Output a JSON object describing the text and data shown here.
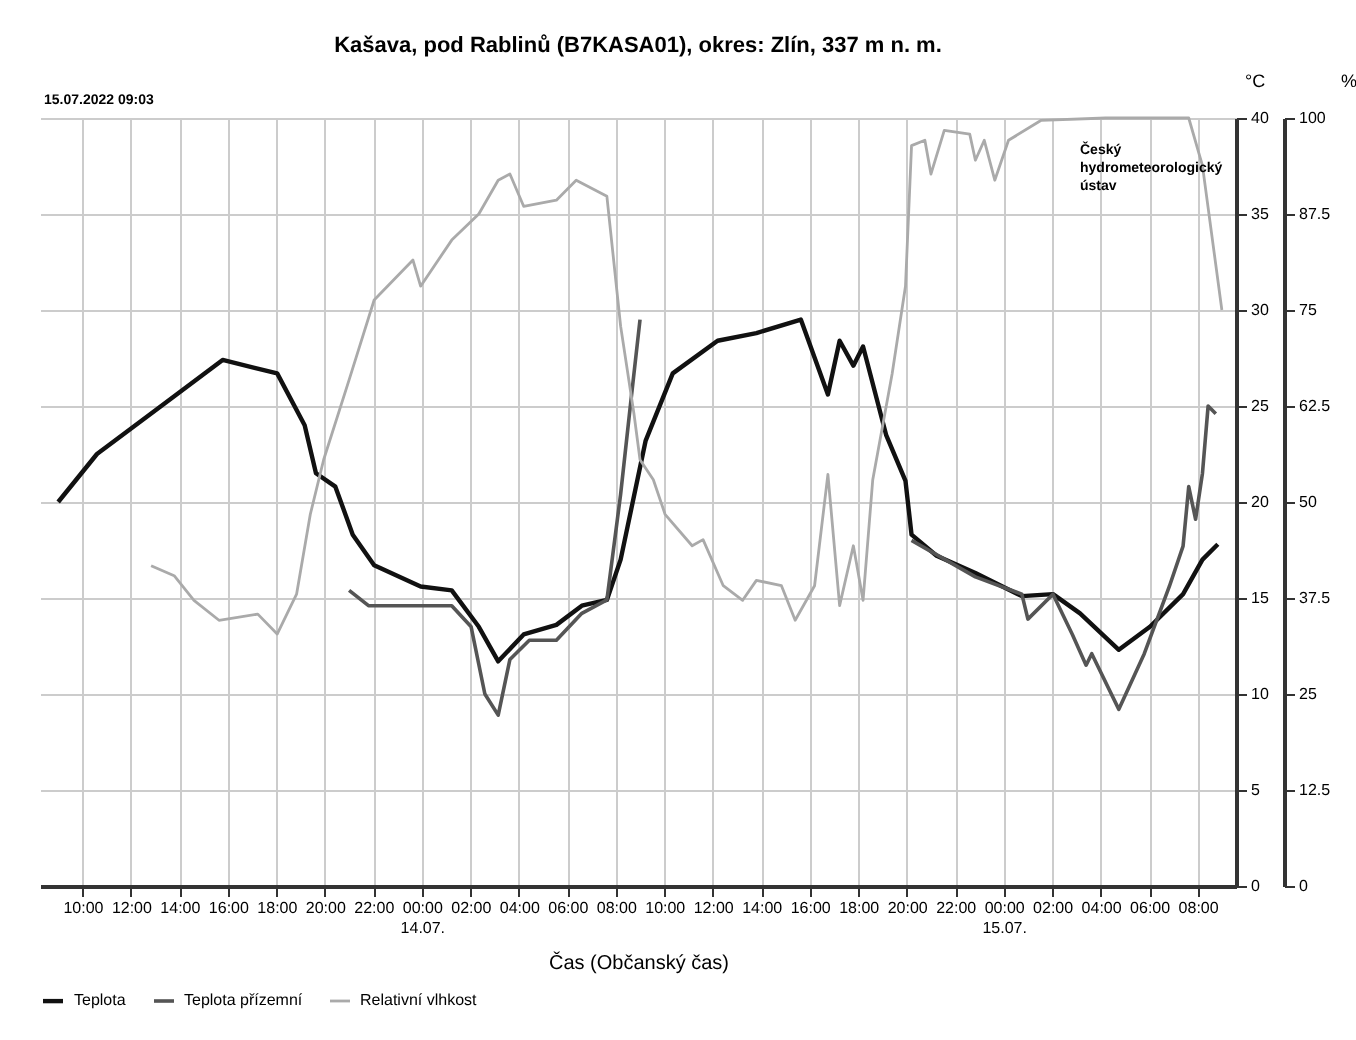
{
  "chart_data": {
    "type": "line",
    "title": "Kašava, pod Rablinů (B7KASA01), okres: Zlín, 337 m n. m.",
    "xlabel": "Čas (Občanský čas)",
    "ylabel": "°C",
    "y2label": "%",
    "annotations": [
      "15.07.2022 09:03",
      "Český hydrometeorologický ústav"
    ],
    "xlim": [
      "2022-07-13T08:15",
      "2022-07-15T09:35"
    ],
    "xticks": [
      {
        "value": "2022-07-13T10:00",
        "label": "10:00"
      },
      {
        "value": "2022-07-13T12:00",
        "label": "12:00"
      },
      {
        "value": "2022-07-13T14:00",
        "label": "14:00"
      },
      {
        "value": "2022-07-13T16:00",
        "label": "16:00"
      },
      {
        "value": "2022-07-13T18:00",
        "label": "18:00"
      },
      {
        "value": "2022-07-13T20:00",
        "label": "20:00"
      },
      {
        "value": "2022-07-13T22:00",
        "label": "22:00"
      },
      {
        "value": "2022-07-14T00:00",
        "label": "00:00\n14.07."
      },
      {
        "value": "2022-07-14T02:00",
        "label": "02:00"
      },
      {
        "value": "2022-07-14T04:00",
        "label": "04:00"
      },
      {
        "value": "2022-07-14T06:00",
        "label": "06:00"
      },
      {
        "value": "2022-07-14T08:00",
        "label": "08:00"
      },
      {
        "value": "2022-07-14T10:00",
        "label": "10:00"
      },
      {
        "value": "2022-07-14T12:00",
        "label": "12:00"
      },
      {
        "value": "2022-07-14T14:00",
        "label": "14:00"
      },
      {
        "value": "2022-07-14T16:00",
        "label": "16:00"
      },
      {
        "value": "2022-07-14T18:00",
        "label": "18:00"
      },
      {
        "value": "2022-07-14T20:00",
        "label": "20:00"
      },
      {
        "value": "2022-07-14T22:00",
        "label": "22:00"
      },
      {
        "value": "2022-07-15T00:00",
        "label": "00:00\n15.07."
      },
      {
        "value": "2022-07-15T02:00",
        "label": "02:00"
      },
      {
        "value": "2022-07-15T04:00",
        "label": "04:00"
      },
      {
        "value": "2022-07-15T06:00",
        "label": "06:00"
      },
      {
        "value": "2022-07-15T08:00",
        "label": "08:00"
      }
    ],
    "ylim": [
      0,
      40
    ],
    "yticks": [
      0,
      5,
      10,
      15,
      20,
      25,
      30,
      35,
      40
    ],
    "y2lim": [
      0,
      100
    ],
    "y2ticks": [
      0,
      12.5,
      25,
      37.5,
      50,
      62.5,
      75,
      87.5,
      100
    ],
    "grid": true,
    "legend": "bottom",
    "line_style": "solid",
    "series": [
      {
        "name": "Teplota",
        "color": "#111111",
        "x": [
          "2022-07-13T09:00",
          "2022-07-13T10:36",
          "2022-07-13T13:15",
          "2022-07-13T15:47",
          "2022-07-13T18:02",
          "2022-07-13T19:10",
          "2022-07-13T19:38",
          "2022-07-13T20:26",
          "2022-07-13T21:09",
          "2022-07-13T22:02",
          "2022-07-13T23:57",
          "2022-07-14T01:14",
          "2022-07-14T02:21",
          "2022-07-14T03:09",
          "2022-07-14T04:12",
          "2022-07-14T05:33",
          "2022-07-14T06:36",
          "2022-07-14T07:38",
          "2022-07-14T08:12",
          "2022-07-14T09:14",
          "2022-07-14T10:21",
          "2022-07-14T12:12",
          "2022-07-14T13:48",
          "2022-07-14T15:38",
          "2022-07-14T16:45",
          "2022-07-14T17:14",
          "2022-07-14T17:48",
          "2022-07-14T18:12",
          "2022-07-14T19:09",
          "2022-07-14T19:57",
          "2022-07-14T20:12",
          "2022-07-14T21:14",
          "2022-07-14T22:50",
          "2022-07-15T00:45",
          "2022-07-15T02:02",
          "2022-07-15T03:09",
          "2022-07-15T04:45",
          "2022-07-15T06:02",
          "2022-07-15T07:24",
          "2022-07-15T08:12",
          "2022-07-15T08:50"
        ],
        "values": [
          20.0,
          22.5,
          25.0,
          27.4,
          26.7,
          24.0,
          21.5,
          20.8,
          18.3,
          16.7,
          15.6,
          15.4,
          13.5,
          11.7,
          13.1,
          13.6,
          14.6,
          14.9,
          17.0,
          23.2,
          26.7,
          28.4,
          28.8,
          29.5,
          25.6,
          28.4,
          27.1,
          28.1,
          23.5,
          21.1,
          18.3,
          17.2,
          16.3,
          15.1,
          15.2,
          14.2,
          12.3,
          13.5,
          15.2,
          17.0,
          17.8
        ]
      },
      {
        "name": "Teplota přízemní",
        "color": "#555555",
        "x": [
          "2022-07-13T21:00",
          "2022-07-13T21:48",
          "2022-07-13T23:38",
          "2022-07-14T01:14",
          "2022-07-14T02:02",
          "2022-07-14T02:36",
          "2022-07-14T03:09",
          "2022-07-14T03:38",
          "2022-07-14T04:26",
          "2022-07-14T05:33",
          "2022-07-14T06:36",
          "2022-07-14T07:38",
          "2022-07-14T08:12",
          "2022-07-14T08:36",
          "2022-07-14T09:00",
          "2022-07-14T14:00",
          "2022-07-14T20:12",
          "2022-07-14T22:50",
          "2022-07-15T00:45",
          "2022-07-15T01:00",
          "2022-07-15T02:02",
          "2022-07-15T02:50",
          "2022-07-15T03:24",
          "2022-07-15T03:38",
          "2022-07-15T04:45",
          "2022-07-15T05:48",
          "2022-07-15T06:50",
          "2022-07-15T07:24",
          "2022-07-15T07:38",
          "2022-07-15T07:55",
          "2022-07-15T08:12",
          "2022-07-15T08:26",
          "2022-07-15T08:45"
        ],
        "values": [
          15.4,
          14.6,
          14.6,
          14.6,
          13.5,
          10.0,
          8.9,
          11.8,
          12.8,
          12.8,
          14.2,
          14.9,
          20.4,
          25.0,
          29.5,
          null,
          18.0,
          16.1,
          15.2,
          13.9,
          15.2,
          13.1,
          11.5,
          12.1,
          9.2,
          12.1,
          15.6,
          17.7,
          20.8,
          19.1,
          21.5,
          25.0,
          24.6
        ]
      },
      {
        "name": "Relativní vlhkost",
        "color": "#aaaaaa",
        "axis": "y2",
        "x": [
          "2022-07-13T12:50",
          "2022-07-13T13:47",
          "2022-07-13T14:36",
          "2022-07-13T15:38",
          "2022-07-13T17:14",
          "2022-07-13T18:02",
          "2022-07-13T18:50",
          "2022-07-13T19:24",
          "2022-07-13T19:57",
          "2022-07-13T21:00",
          "2022-07-13T22:02",
          "2022-07-13T23:38",
          "2022-07-13T23:57",
          "2022-07-14T01:14",
          "2022-07-14T02:21",
          "2022-07-14T03:09",
          "2022-07-14T03:38",
          "2022-07-14T04:12",
          "2022-07-14T05:33",
          "2022-07-14T06:22",
          "2022-07-14T07:38",
          "2022-07-14T08:12",
          "2022-07-14T08:45",
          "2022-07-14T09:00",
          "2022-07-14T09:33",
          "2022-07-14T10:02",
          "2022-07-14T11:09",
          "2022-07-14T11:36",
          "2022-07-14T12:26",
          "2022-07-14T13:14",
          "2022-07-14T13:48",
          "2022-07-14T14:50",
          "2022-07-14T15:24",
          "2022-07-14T16:12",
          "2022-07-14T16:45",
          "2022-07-14T17:14",
          "2022-07-14T17:48",
          "2022-07-14T18:12",
          "2022-07-14T18:36",
          "2022-07-14T19:24",
          "2022-07-14T19:57",
          "2022-07-14T20:12",
          "2022-07-14T20:45",
          "2022-07-14T21:00",
          "2022-07-14T21:33",
          "2022-07-14T22:36",
          "2022-07-14T22:50",
          "2022-07-14T23:12",
          "2022-07-14T23:38",
          "2022-07-15T00:12",
          "2022-07-15T01:33",
          "2022-07-15T04:12",
          "2022-07-15T07:38",
          "2022-07-15T08:12",
          "2022-07-15T09:00"
        ],
        "values": [
          41.7,
          40.4,
          37.2,
          34.6,
          35.4,
          32.8,
          38.0,
          48.4,
          55.5,
          65.9,
          76.3,
          81.5,
          78.1,
          84.1,
          87.5,
          91.9,
          92.7,
          88.5,
          89.3,
          91.9,
          89.8,
          72.9,
          61.5,
          55.5,
          52.9,
          48.4,
          44.3,
          45.1,
          39.1,
          37.2,
          39.8,
          39.1,
          34.6,
          39.1,
          53.6,
          36.5,
          44.3,
          37.2,
          52.9,
          66.7,
          78.1,
          96.4,
          97.1,
          92.7,
          98.4,
          97.9,
          94.5,
          97.1,
          91.9,
          97.1,
          99.7,
          100,
          100,
          93.8,
          75.0
        ]
      }
    ]
  }
}
